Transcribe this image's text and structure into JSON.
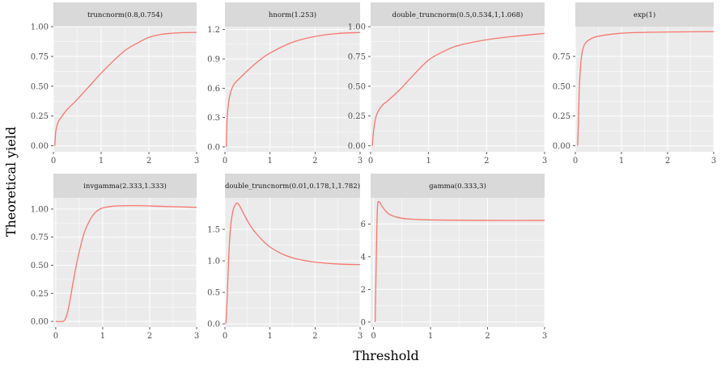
{
  "figure": {
    "xlabel": "Threshold",
    "ylabel": "Theoretical yield",
    "line_color": "#F8766D",
    "panel_bg": "#EBEBEB",
    "strip_bg": "#D9D9D9",
    "grid_color": "#FFFFFF"
  },
  "chart_data": [
    {
      "type": "line",
      "title": "truncnorm(0.8,0.754)",
      "xlim": [
        0,
        3
      ],
      "ylim": [
        -0.05,
        1.0
      ],
      "xticks": [
        0,
        1,
        2,
        3
      ],
      "xtick_labels": [
        "0",
        "1",
        "2",
        "3"
      ],
      "yticks": [
        0,
        0.25,
        0.5,
        0.75,
        1.0
      ],
      "ytick_labels": [
        "0.00",
        "0.25",
        "0.50",
        "0.75",
        "1.00"
      ],
      "x": [
        0.03,
        0.05,
        0.1,
        0.2,
        0.3,
        0.5,
        0.75,
        1.0,
        1.25,
        1.5,
        1.75,
        2.0,
        2.25,
        2.5,
        2.75,
        3.0
      ],
      "y": [
        0.0,
        0.12,
        0.2,
        0.26,
        0.31,
        0.39,
        0.5,
        0.61,
        0.71,
        0.8,
        0.86,
        0.91,
        0.935,
        0.945,
        0.95,
        0.952
      ]
    },
    {
      "type": "line",
      "title": "hnorm(1.253)",
      "xlim": [
        0,
        3
      ],
      "ylim": [
        -0.05,
        1.23
      ],
      "xticks": [
        0,
        1,
        2,
        3
      ],
      "xtick_labels": [
        "0",
        "1",
        "2",
        "3"
      ],
      "yticks": [
        0,
        0.3,
        0.6,
        0.9,
        1.2
      ],
      "ytick_labels": [
        "0.0",
        "0.3",
        "0.6",
        "0.9",
        "1.2"
      ],
      "x": [
        0.03,
        0.05,
        0.08,
        0.12,
        0.2,
        0.3,
        0.5,
        0.75,
        1.0,
        1.5,
        2.0,
        2.5,
        3.0
      ],
      "y": [
        0.0,
        0.3,
        0.45,
        0.55,
        0.64,
        0.69,
        0.78,
        0.88,
        0.96,
        1.07,
        1.13,
        1.16,
        1.17
      ]
    },
    {
      "type": "line",
      "title": "double_truncnorm(0.5,0.534,1,1.068)",
      "xlim": [
        0,
        3
      ],
      "ylim": [
        -0.05,
        1.0
      ],
      "xticks": [
        0,
        1,
        2,
        3
      ],
      "xtick_labels": [
        "0",
        "1",
        "2",
        "3"
      ],
      "yticks": [
        0,
        0.25,
        0.5,
        0.75,
        1.0
      ],
      "ytick_labels": [
        "0.00",
        "0.25",
        "0.50",
        "0.75",
        "1.00"
      ],
      "x": [
        0.03,
        0.05,
        0.08,
        0.12,
        0.2,
        0.3,
        0.5,
        0.75,
        1.0,
        1.25,
        1.5,
        2.0,
        2.5,
        3.0
      ],
      "y": [
        0.0,
        0.12,
        0.22,
        0.28,
        0.34,
        0.38,
        0.47,
        0.6,
        0.72,
        0.79,
        0.84,
        0.89,
        0.92,
        0.943
      ]
    },
    {
      "type": "line",
      "title": "exp(1)",
      "xlim": [
        0,
        3
      ],
      "ylim": [
        -0.05,
        1.0
      ],
      "xticks": [
        0,
        1,
        2,
        3
      ],
      "xtick_labels": [
        "0",
        "1",
        "2",
        "3"
      ],
      "yticks": [
        0,
        0.25,
        0.5,
        0.75
      ],
      "ytick_labels": [
        "0.00",
        "0.25",
        "0.50",
        "0.75"
      ],
      "x": [
        0.05,
        0.07,
        0.09,
        0.12,
        0.15,
        0.2,
        0.3,
        0.5,
        1.0,
        1.5,
        2.0,
        2.5,
        3.0
      ],
      "y": [
        0.0,
        0.25,
        0.52,
        0.7,
        0.79,
        0.85,
        0.89,
        0.92,
        0.945,
        0.952,
        0.955,
        0.957,
        0.958
      ]
    },
    {
      "type": "line",
      "title": "invgamma(2.333,1.333)",
      "xlim": [
        -0.05,
        3.0
      ],
      "ylim": [
        -0.05,
        1.1
      ],
      "xticks": [
        0,
        1,
        2,
        3
      ],
      "xtick_labels": [
        "0",
        "1",
        "2",
        "3"
      ],
      "yticks": [
        0,
        0.25,
        0.5,
        0.75,
        1.0
      ],
      "ytick_labels": [
        "0.00",
        "0.25",
        "0.50",
        "0.75",
        "1.00"
      ],
      "x": [
        0.0,
        0.15,
        0.2,
        0.25,
        0.3,
        0.4,
        0.5,
        0.6,
        0.7,
        0.8,
        0.9,
        1.0,
        1.2,
        1.5,
        1.8,
        2.2,
        2.6,
        3.0
      ],
      "y": [
        0.0,
        0.0,
        0.02,
        0.08,
        0.18,
        0.42,
        0.62,
        0.78,
        0.88,
        0.95,
        0.99,
        1.01,
        1.025,
        1.03,
        1.03,
        1.025,
        1.02,
        1.015
      ]
    },
    {
      "type": "line",
      "title": "double_truncnorm(0.01,0.178,1,1.782)",
      "xlim": [
        0,
        3
      ],
      "ylim": [
        -0.05,
        2.0
      ],
      "xticks": [
        0,
        1,
        2,
        3
      ],
      "xtick_labels": [
        "0",
        "1",
        "2",
        "3"
      ],
      "yticks": [
        0,
        0.5,
        1.0,
        1.5
      ],
      "ytick_labels": [
        "0.0",
        "0.5",
        "1.0",
        "1.5"
      ],
      "x": [
        0.02,
        0.05,
        0.08,
        0.12,
        0.18,
        0.25,
        0.3,
        0.35,
        0.45,
        0.6,
        0.8,
        1.0,
        1.3,
        1.6,
        2.0,
        2.5,
        3.0
      ],
      "y": [
        0.0,
        0.4,
        1.0,
        1.5,
        1.8,
        1.91,
        1.9,
        1.84,
        1.7,
        1.52,
        1.35,
        1.22,
        1.1,
        1.03,
        0.98,
        0.95,
        0.94
      ]
    },
    {
      "type": "line",
      "title": "gamma(0.333,3)",
      "xlim": [
        -0.05,
        3.0
      ],
      "ylim": [
        -0.3,
        7.6
      ],
      "xticks": [
        0,
        1,
        2,
        3
      ],
      "xtick_labels": [
        "0",
        "1",
        "2",
        "3"
      ],
      "yticks": [
        0,
        2,
        4,
        6
      ],
      "ytick_labels": [
        "0",
        "2",
        "4",
        "6"
      ],
      "x": [
        0.03,
        0.05,
        0.07,
        0.1,
        0.13,
        0.2,
        0.3,
        0.5,
        0.8,
        1.2,
        2.0,
        3.0
      ],
      "y": [
        0.0,
        4.0,
        7.0,
        7.35,
        7.2,
        6.85,
        6.55,
        6.35,
        6.27,
        6.24,
        6.22,
        6.22
      ]
    }
  ]
}
